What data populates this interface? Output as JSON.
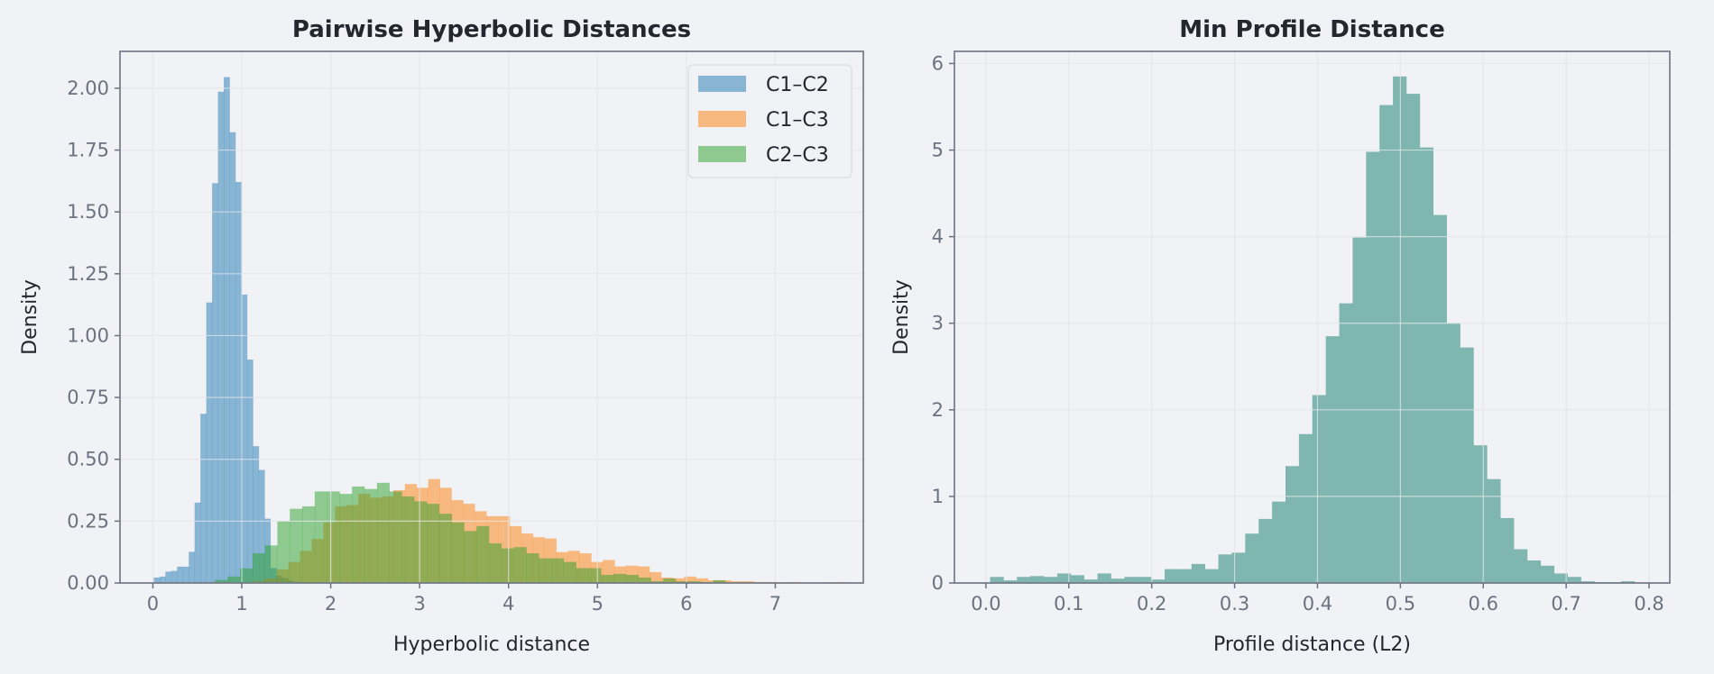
{
  "chart_data": [
    {
      "type": "histogram",
      "title": "Pairwise Hyperbolic Distances",
      "xlabel": "Hyperbolic distance",
      "ylabel": "Density",
      "xlim": [
        -0.37,
        7.99
      ],
      "ylim": [
        0,
        2.149
      ],
      "xticks": [
        0,
        1,
        2,
        3,
        4,
        5,
        6,
        7
      ],
      "xtick_labels": [
        "0",
        "1",
        "2",
        "3",
        "4",
        "5",
        "6",
        "7"
      ],
      "yticks": [
        0,
        0.25,
        0.5,
        0.75,
        1,
        1.25,
        1.5,
        1.75,
        2
      ],
      "ytick_labels": [
        "0.00",
        "0.25",
        "0.50",
        "0.75",
        "1.00",
        "1.25",
        "1.50",
        "1.75",
        "2.00"
      ],
      "grid": true,
      "legend_position": "top-right",
      "series": [
        {
          "name": "C1–C2",
          "color": "#1f77b4",
          "start": 0.01,
          "bin_width": 0.0656,
          "values": [
            0.022,
            0.026,
            0.046,
            0.049,
            0.066,
            0.066,
            0.126,
            0.325,
            0.684,
            1.134,
            1.616,
            1.986,
            2.045,
            1.822,
            1.621,
            1.166,
            0.903,
            0.553,
            0.457,
            0.26,
            0.06,
            0.03,
            0.02,
            0.01,
            0.005,
            0.003,
            0.002
          ]
        },
        {
          "name": "C1–C3",
          "color": "#ff7f0e",
          "start": 1.0,
          "bin_width": 0.131,
          "values": [
            0.003,
            0.008,
            0.018,
            0.055,
            0.085,
            0.13,
            0.178,
            0.245,
            0.31,
            0.315,
            0.36,
            0.345,
            0.35,
            0.375,
            0.4,
            0.385,
            0.42,
            0.385,
            0.335,
            0.32,
            0.29,
            0.27,
            0.27,
            0.23,
            0.2,
            0.185,
            0.18,
            0.125,
            0.13,
            0.12,
            0.085,
            0.093,
            0.067,
            0.07,
            0.067,
            0.044,
            0.022,
            0.019,
            0.026,
            0.019,
            0.011,
            0.011,
            0.007,
            0.007,
            0.004,
            0.004,
            0.003,
            0.004,
            0.002,
            0.002,
            0.003,
            0.004
          ]
        },
        {
          "name": "C2–C3",
          "color": "#2ca02c",
          "start": 0.7,
          "bin_width": 0.14,
          "values": [
            0.012,
            0.026,
            0.059,
            0.12,
            0.152,
            0.25,
            0.3,
            0.31,
            0.37,
            0.37,
            0.36,
            0.39,
            0.38,
            0.405,
            0.37,
            0.35,
            0.33,
            0.32,
            0.28,
            0.245,
            0.21,
            0.23,
            0.16,
            0.14,
            0.145,
            0.12,
            0.1,
            0.1,
            0.085,
            0.06,
            0.06,
            0.033,
            0.037,
            0.033,
            0.022,
            0.007,
            0.018,
            0.007,
            0.007,
            0.004,
            0.011,
            0.003,
            0.003,
            0.002,
            0.002
          ]
        }
      ]
    },
    {
      "type": "histogram",
      "title": "Min Profile Distance",
      "xlabel": "Profile distance (L2)",
      "ylabel": "Density",
      "xlim": [
        -0.038,
        0.825
      ],
      "ylim": [
        0,
        6.14
      ],
      "xticks": [
        0,
        0.1,
        0.2,
        0.3,
        0.4,
        0.5,
        0.6,
        0.7,
        0.8
      ],
      "xtick_labels": [
        "0.0",
        "0.1",
        "0.2",
        "0.3",
        "0.4",
        "0.5",
        "0.6",
        "0.7",
        "0.8"
      ],
      "yticks": [
        0,
        1,
        2,
        3,
        4,
        5,
        6
      ],
      "ytick_labels": [
        "0",
        "1",
        "2",
        "3",
        "4",
        "5",
        "6"
      ],
      "grid": true,
      "series": [
        {
          "name": "Min profile distance",
          "color": "#7fb6af",
          "start": 0.005,
          "bin_width": 0.0162,
          "values": [
            0.07,
            0.03,
            0.07,
            0.08,
            0.07,
            0.11,
            0.09,
            0.04,
            0.11,
            0.05,
            0.07,
            0.07,
            0.04,
            0.16,
            0.16,
            0.22,
            0.16,
            0.33,
            0.35,
            0.57,
            0.74,
            0.94,
            1.35,
            1.72,
            2.17,
            2.85,
            3.23,
            3.99,
            4.98,
            5.52,
            5.85,
            5.65,
            5.03,
            4.25,
            3.0,
            2.72,
            1.59,
            1.2,
            0.75,
            0.39,
            0.26,
            0.2,
            0.11,
            0.07,
            0.02,
            0.01,
            0.01,
            0.02
          ]
        }
      ]
    }
  ]
}
